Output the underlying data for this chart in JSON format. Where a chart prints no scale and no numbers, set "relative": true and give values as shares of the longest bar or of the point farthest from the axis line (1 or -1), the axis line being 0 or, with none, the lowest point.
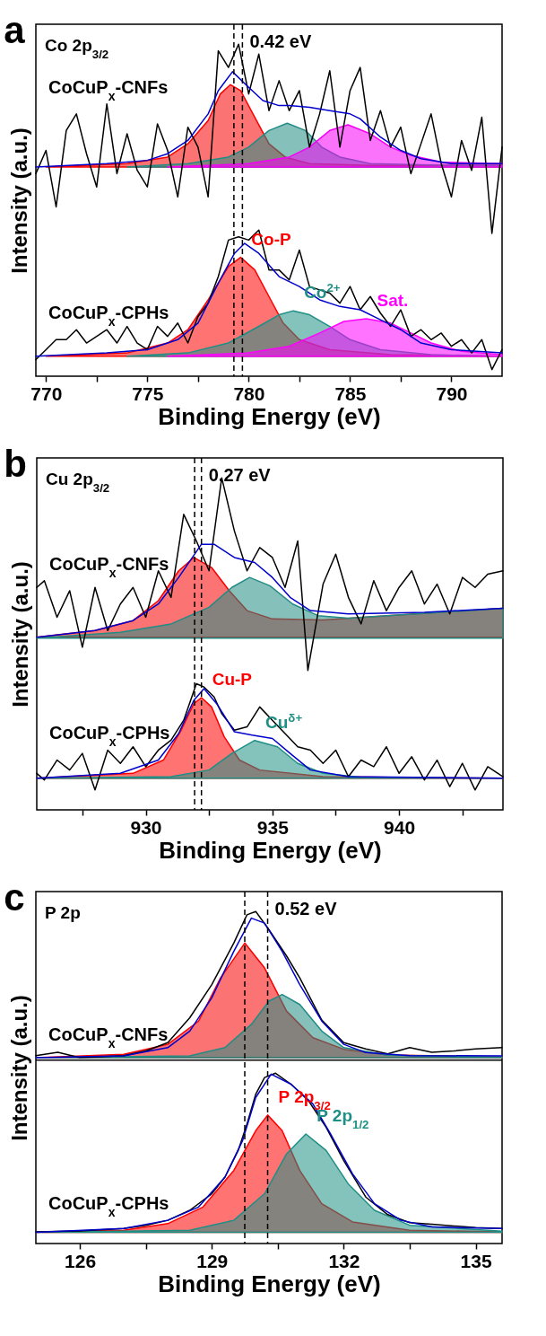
{
  "chart_data": [
    {
      "type": "line",
      "title": "Co 2p$_{3/2}$",
      "xlabel": "Binding Energy (eV)",
      "ylabel": "Intensity (a.u.)",
      "relative": true,
      "xlim": [
        769.5,
        792.5
      ],
      "xticks": [
        770,
        {
          "value": 772.5,
          "label": null
        },
        775,
        {
          "value": 777.5,
          "label": null
        },
        780,
        {
          "value": 782.5,
          "label": null
        },
        785,
        {
          "value": 787.5,
          "label": null
        },
        790
      ],
      "series": [
        {
          "type": "area",
          "color": "#fa0000",
          "x": [
            770,
            774,
            776,
            777,
            778,
            778.6,
            779.1,
            779.6,
            780.3,
            781,
            781.8,
            783,
            786,
            792.5
          ],
          "values": [
            0.63,
            0.64,
            0.66,
            0.7,
            0.77,
            0.85,
            0.878,
            0.86,
            0.78,
            0.7,
            0.66,
            0.64,
            0.635,
            0.635
          ]
        },
        {
          "type": "area",
          "color": "#228c84",
          "x": [
            774,
            777,
            779,
            780,
            781,
            781.9,
            782.8,
            783.6,
            784.5,
            786,
            790,
            792.5
          ],
          "values": [
            0.63,
            0.64,
            0.66,
            0.69,
            0.74,
            0.762,
            0.74,
            0.69,
            0.66,
            0.64,
            0.635,
            0.635
          ]
        },
        {
          "type": "area",
          "color": "#f500f5",
          "x": [
            776,
            780,
            782,
            783,
            784,
            784.9,
            786,
            787,
            788,
            789.5,
            792.5
          ],
          "values": [
            0.63,
            0.64,
            0.66,
            0.69,
            0.74,
            0.757,
            0.73,
            0.69,
            0.665,
            0.645,
            0.64
          ]
        },
        {
          "type": "area",
          "name": "Co-P",
          "color": "#ff0000",
          "x": [
            770,
            774,
            776,
            777,
            778,
            779,
            779.6,
            780.3,
            781,
            781.7,
            782.5,
            784,
            787,
            792.5
          ],
          "values": [
            0.06,
            0.07,
            0.1,
            0.14,
            0.23,
            0.33,
            0.358,
            0.32,
            0.24,
            0.16,
            0.11,
            0.08,
            0.065,
            0.06
          ]
        },
        {
          "type": "area",
          "name": "Co$^{2+}$",
          "color": "#1f8f85",
          "x": [
            774,
            777,
            779,
            780.5,
            781.5,
            782.2,
            783,
            784,
            785,
            786.5,
            789,
            792.5
          ],
          "values": [
            0.06,
            0.07,
            0.1,
            0.15,
            0.185,
            0.197,
            0.185,
            0.15,
            0.11,
            0.08,
            0.065,
            0.06
          ]
        },
        {
          "type": "area",
          "name": "Sat.",
          "color": "#ff00ff",
          "x": [
            776,
            780,
            782,
            783.5,
            784.7,
            785.8,
            787,
            788,
            789,
            790.5,
            792.5
          ],
          "values": [
            0.06,
            0.07,
            0.09,
            0.13,
            0.165,
            0.173,
            0.16,
            0.13,
            0.1,
            0.075,
            0.065
          ]
        },
        {
          "type": "line",
          "name": "CoCuP$_{x}$-CNFs",
          "color": "#000000",
          "x": [
            769.5,
            770,
            770.5,
            771,
            771.5,
            772,
            772.5,
            773,
            773.5,
            774,
            774.5,
            775,
            775.5,
            776,
            776.5,
            777,
            777.5,
            778,
            778.5,
            779,
            779.5,
            780,
            780.5,
            781,
            781.5,
            782,
            782.5,
            783,
            783.5,
            784,
            784.5,
            785,
            785.5,
            786,
            786.5,
            787,
            787.5,
            788,
            788.5,
            789,
            789.5,
            790,
            790.5,
            791,
            791.5,
            792,
            792.5
          ],
          "values": [
            0.61,
            0.68,
            0.51,
            0.74,
            0.79,
            0.67,
            0.57,
            0.82,
            0.61,
            0.73,
            0.62,
            0.57,
            0.76,
            0.68,
            0.54,
            0.75,
            0.69,
            0.54,
            0.98,
            0.93,
            1,
            0.85,
            0.97,
            0.8,
            0.89,
            0.8,
            0.86,
            0.69,
            0.79,
            0.92,
            0.69,
            0.86,
            0.93,
            0.71,
            0.8,
            0.69,
            0.75,
            0.61,
            0.7,
            0.79,
            0.64,
            0.54,
            0.71,
            0.62,
            0.78,
            0.43,
            0.69
          ]
        },
        {
          "type": "line",
          "name": "CoCuP$_{x}$-CPHs",
          "color": "#000000",
          "x": [
            769.5,
            770,
            770.5,
            771,
            771.5,
            772,
            772.5,
            773,
            773.5,
            774,
            774.5,
            775,
            775.5,
            776,
            776.5,
            777,
            777.5,
            778,
            778.5,
            779,
            779.5,
            780,
            780.5,
            781,
            781.5,
            782,
            782.5,
            783,
            783.5,
            784,
            784.5,
            785,
            785.5,
            786,
            786.5,
            787,
            787.5,
            788,
            788.5,
            789,
            789.5,
            790,
            790.5,
            791,
            791.5,
            792,
            792.5
          ],
          "values": [
            0.05,
            0.08,
            0.11,
            0.11,
            0.14,
            0.1,
            0.12,
            0.14,
            0.1,
            0.15,
            0.1,
            0.08,
            0.15,
            0.12,
            0.16,
            0.1,
            0.18,
            0.22,
            0.3,
            0.41,
            0.42,
            0.41,
            0.44,
            0.32,
            0.32,
            0.29,
            0.38,
            0.27,
            0.26,
            0.25,
            0.22,
            0.27,
            0.2,
            0.24,
            0.19,
            0.15,
            0.2,
            0.12,
            0.14,
            0.11,
            0.13,
            0.09,
            0.11,
            0.07,
            0.11,
            0.02,
            0.08
          ]
        },
        {
          "type": "line",
          "color": "#0000cc",
          "x": [
            769.5,
            773,
            775,
            776,
            777,
            778,
            778.5,
            779.2,
            780,
            780.7,
            781.5,
            782,
            783,
            784,
            785,
            785.5,
            786.5,
            787.5,
            788.5,
            790,
            792.5
          ],
          "values": [
            0.63,
            0.64,
            0.65,
            0.67,
            0.71,
            0.79,
            0.86,
            0.917,
            0.87,
            0.83,
            0.815,
            0.815,
            0.81,
            0.8,
            0.79,
            0.775,
            0.72,
            0.68,
            0.655,
            0.64,
            0.64
          ]
        },
        {
          "type": "line",
          "color": "#0000cd",
          "x": [
            769.5,
            773,
            775,
            776.5,
            777.5,
            778.5,
            779.3,
            779.8,
            780.5,
            781.5,
            782.5,
            783.5,
            784.5,
            785.5,
            786.5,
            787.5,
            788.5,
            790,
            792.5
          ],
          "values": [
            0.06,
            0.07,
            0.08,
            0.11,
            0.16,
            0.28,
            0.37,
            0.4,
            0.37,
            0.3,
            0.27,
            0.23,
            0.21,
            0.2,
            0.17,
            0.14,
            0.1,
            0.08,
            0.07
          ]
        }
      ],
      "ref_lines": [
        {
          "axis": "x",
          "value": 779.27,
          "line_style": "dashed"
        },
        {
          "axis": "x",
          "value": 779.69,
          "line_style": "dashed"
        }
      ],
      "annotations": [
        "a",
        "0.42 eV"
      ]
    },
    {
      "type": "line",
      "title": "Cu 2p$_{3/2}$",
      "xlabel": "Binding Energy (eV)",
      "ylabel": "Intensity (a.u.)",
      "relative": true,
      "xlim": [
        925.7,
        944.1
      ],
      "xticks": [
        {
          "value": 927.5,
          "label": null
        },
        930,
        {
          "value": 932.5,
          "label": null
        },
        935,
        {
          "value": 937.5,
          "label": null
        },
        940,
        {
          "value": 942.5,
          "label": null
        }
      ],
      "series": [
        {
          "type": "area",
          "color": "#fa0000",
          "x": [
            925.7,
            928,
            929.5,
            930.5,
            931.3,
            931.9,
            932.6,
            933.3,
            934,
            935,
            937,
            944.1
          ],
          "values": [
            0.52,
            0.54,
            0.57,
            0.63,
            0.72,
            0.76,
            0.73,
            0.66,
            0.6,
            0.575,
            0.572,
            0.607
          ]
        },
        {
          "type": "area",
          "color": "#228c84",
          "x": [
            925.7,
            929,
            931,
            932.5,
            933.4,
            934.1,
            934.9,
            935.8,
            936.8,
            938,
            944.1
          ],
          "values": [
            0.517,
            0.535,
            0.56,
            0.61,
            0.67,
            0.7,
            0.675,
            0.62,
            0.585,
            0.577,
            0.607
          ]
        },
        {
          "type": "area",
          "name": "Cu-P",
          "color": "#ff0000",
          "x": [
            925.7,
            929.5,
            930.7,
            931.4,
            931.9,
            932.2,
            932.6,
            933.1,
            933.7,
            934.5,
            937,
            944.1
          ],
          "values": [
            0.095,
            0.11,
            0.15,
            0.24,
            0.32,
            0.338,
            0.31,
            0.22,
            0.15,
            0.12,
            0.1,
            0.095
          ]
        },
        {
          "type": "area",
          "name": "Cu$^{δ+}$",
          "color": "#1f8f85",
          "x": [
            925.7,
            931,
            932.5,
            933.4,
            934.3,
            935.2,
            936,
            937,
            938.5,
            944.1
          ],
          "values": [
            0.095,
            0.1,
            0.12,
            0.17,
            0.209,
            0.19,
            0.14,
            0.11,
            0.098,
            0.095
          ]
        },
        {
          "type": "line",
          "name": "CoCuP$_{x}$-CNFs",
          "color": "#000000",
          "x": [
            925.7,
            926,
            926.5,
            927,
            927.5,
            928,
            928.5,
            929,
            929.5,
            930,
            930.5,
            931,
            931.5,
            932,
            932.5,
            933,
            933.5,
            934,
            934.5,
            935,
            935.5,
            936,
            936.4,
            937,
            937.5,
            938,
            938.5,
            939,
            939.5,
            940,
            940.5,
            941,
            941.5,
            942,
            942.5,
            943,
            943.5,
            944.1
          ],
          "values": [
            0.67,
            0.69,
            0.58,
            0.66,
            0.49,
            0.67,
            0.54,
            0.62,
            0.67,
            0.58,
            0.72,
            0.64,
            0.89,
            0.81,
            0.72,
            1,
            0.84,
            0.72,
            0.79,
            0.76,
            0.67,
            0.81,
            0.42,
            0.68,
            0.77,
            0.64,
            0.56,
            0.69,
            0.6,
            0.67,
            0.72,
            0.62,
            0.68,
            0.59,
            0.7,
            0.67,
            0.71,
            0.72
          ]
        },
        {
          "type": "line",
          "name": "CoCuP$_{x}$-CPHs",
          "color": "#000000",
          "x": [
            925.7,
            926,
            926.5,
            927,
            927.5,
            928,
            928.5,
            929,
            929.5,
            930,
            930.5,
            931,
            931.5,
            932,
            932.3,
            932.7,
            933,
            933.5,
            934,
            934.5,
            935,
            935.5,
            936,
            936.5,
            937,
            937.5,
            938,
            938.5,
            939,
            939.5,
            940,
            940.5,
            941,
            941.5,
            942,
            942.5,
            943,
            943.5,
            944.1
          ],
          "values": [
            0.11,
            0.09,
            0.15,
            0.12,
            0.17,
            0.06,
            0.18,
            0.14,
            0.19,
            0.13,
            0.18,
            0.21,
            0.27,
            0.38,
            0.37,
            0.34,
            0.29,
            0.24,
            0.25,
            0.31,
            0.27,
            0.23,
            0.19,
            0.18,
            0.14,
            0.18,
            0.1,
            0.15,
            0.13,
            0.19,
            0.11,
            0.16,
            0.09,
            0.15,
            0.07,
            0.14,
            0.06,
            0.13,
            0.1
          ]
        },
        {
          "type": "line",
          "color": "#0000cc",
          "x": [
            925.7,
            928,
            929.5,
            930.5,
            931.3,
            932.2,
            932.7,
            933.5,
            934.3,
            935,
            935.7,
            936.5,
            938,
            941,
            944.1
          ],
          "values": [
            0.52,
            0.54,
            0.57,
            0.62,
            0.7,
            0.8,
            0.8,
            0.76,
            0.745,
            0.7,
            0.64,
            0.6,
            0.59,
            0.595,
            0.607
          ]
        },
        {
          "type": "line",
          "color": "#0000cd",
          "x": [
            925.7,
            929,
            930.5,
            931.3,
            931.9,
            932.3,
            932.8,
            933.5,
            934.2,
            935,
            935.7,
            936.5,
            938,
            944.1
          ],
          "values": [
            0.095,
            0.11,
            0.15,
            0.23,
            0.33,
            0.365,
            0.32,
            0.235,
            0.225,
            0.215,
            0.17,
            0.12,
            0.1,
            0.095
          ]
        }
      ],
      "ref_lines": [
        {
          "axis": "x",
          "value": 931.93,
          "line_style": "dashed"
        },
        {
          "axis": "x",
          "value": 932.2,
          "line_style": "dashed"
        }
      ],
      "annotations": [
        "b",
        "0.27 eV"
      ]
    },
    {
      "type": "line",
      "title": "P 2p",
      "xlabel": "Binding Energy (eV)",
      "ylabel": "Intensity (a.u.)",
      "relative": true,
      "xlim": [
        125,
        135.6
      ],
      "xticks": [
        126,
        {
          "value": 127.5,
          "label": null
        },
        129,
        {
          "value": 130.5,
          "label": null
        },
        132,
        {
          "value": 133.5,
          "label": null
        },
        135
      ],
      "series": [
        {
          "type": "area",
          "color": "#fa0000",
          "x": [
            125,
            127,
            128,
            128.7,
            129.2,
            129.75,
            130.2,
            130.7,
            131.3,
            132,
            133,
            135.6
          ],
          "values": [
            0.56,
            0.57,
            0.6,
            0.67,
            0.8,
            0.905,
            0.83,
            0.7,
            0.62,
            0.585,
            0.568,
            0.562
          ]
        },
        {
          "type": "area",
          "color": "#228c84",
          "x": [
            125,
            128.5,
            129.3,
            129.9,
            130.3,
            130.6,
            131,
            131.5,
            132,
            133,
            135.6
          ],
          "values": [
            0.56,
            0.565,
            0.59,
            0.66,
            0.73,
            0.75,
            0.72,
            0.64,
            0.59,
            0.567,
            0.562
          ]
        },
        {
          "type": "area",
          "name": "P 2p$_{3/2}$",
          "color": "#ff0000",
          "x": [
            125,
            127,
            128,
            128.8,
            129.5,
            130,
            130.27,
            130.6,
            131,
            131.5,
            132.2,
            133.5,
            135.6
          ],
          "values": [
            0.034,
            0.04,
            0.06,
            0.11,
            0.22,
            0.34,
            0.387,
            0.34,
            0.22,
            0.12,
            0.065,
            0.04,
            0.035
          ]
        },
        {
          "type": "area",
          "name": "P 2p$_{1/2}$",
          "color": "#1f8f85",
          "x": [
            125,
            128.5,
            129.5,
            130.2,
            130.7,
            131.14,
            131.6,
            132.1,
            132.7,
            133.5,
            135.6
          ],
          "values": [
            0.034,
            0.04,
            0.07,
            0.15,
            0.27,
            0.33,
            0.28,
            0.18,
            0.1,
            0.055,
            0.037
          ]
        },
        {
          "type": "line",
          "name": "CoCuP$_{x}$-CNFs",
          "color": "#000000",
          "x": [
            125,
            125.5,
            126,
            127,
            127.5,
            128,
            128.5,
            129,
            129.5,
            129.8,
            130,
            130.3,
            130.7,
            131,
            131.5,
            132,
            132.5,
            133,
            133.5,
            134,
            134.5,
            135,
            135.6
          ],
          "values": [
            0.566,
            0.576,
            0.56,
            0.566,
            0.58,
            0.605,
            0.68,
            0.78,
            0.905,
            0.99,
            1,
            0.945,
            0.866,
            0.8,
            0.673,
            0.605,
            0.586,
            0.571,
            0.59,
            0.576,
            0.58,
            0.586,
            0.59
          ]
        },
        {
          "type": "line",
          "name": "CoCuP$_{x}$-CPHs",
          "color": "#000000",
          "x": [
            125,
            126,
            127,
            127.5,
            128,
            128.5,
            129,
            129.3,
            129.6,
            129.8,
            130,
            130.2,
            130.45,
            130.8,
            131.2,
            131.6,
            132,
            132.5,
            133,
            133.5,
            134,
            134.5,
            135,
            135.6
          ],
          "values": [
            0.035,
            0.038,
            0.045,
            0.055,
            0.07,
            0.1,
            0.15,
            0.2,
            0.28,
            0.36,
            0.45,
            0.5,
            0.513,
            0.48,
            0.43,
            0.35,
            0.25,
            0.14,
            0.087,
            0.063,
            0.058,
            0.053,
            0.048,
            0.045
          ]
        },
        {
          "type": "line",
          "color": "#0000cc",
          "x": [
            125,
            127,
            128,
            128.5,
            129,
            129.5,
            129.9,
            130.2,
            130.6,
            131,
            131.5,
            132,
            132.5,
            133.5,
            135.6
          ],
          "values": [
            0.56,
            0.565,
            0.59,
            0.64,
            0.74,
            0.88,
            0.98,
            0.965,
            0.88,
            0.78,
            0.67,
            0.6,
            0.575,
            0.566,
            0.565
          ]
        },
        {
          "type": "line",
          "color": "#0000cd",
          "x": [
            125,
            127,
            128,
            128.7,
            129.3,
            129.7,
            130,
            130.35,
            130.8,
            131.3,
            131.7,
            132.2,
            132.7,
            133.3,
            134,
            135.6
          ],
          "values": [
            0.034,
            0.045,
            0.07,
            0.11,
            0.2,
            0.31,
            0.44,
            0.51,
            0.48,
            0.42,
            0.33,
            0.21,
            0.12,
            0.07,
            0.05,
            0.045
          ]
        }
      ],
      "ref_lines": [
        {
          "axis": "x",
          "value": 129.75,
          "line_style": "dashed"
        },
        {
          "axis": "x",
          "value": 130.27,
          "line_style": "dashed"
        },
        {
          "axis": "y",
          "value": 0.552,
          "line_style": "solid"
        }
      ],
      "annotations": [
        "c",
        "0.52 eV"
      ]
    }
  ]
}
